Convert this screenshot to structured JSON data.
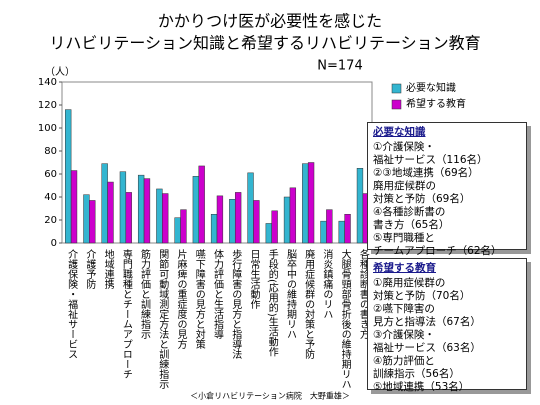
{
  "chart_data": {
    "type": "bar",
    "title": [
      "かかりつけ医が必要性を感じた",
      "リハビリテーション知識と希望するリハビリテーション教育"
    ],
    "subtitle": "N=174",
    "y_label": "（人）",
    "note": "＜小倉リハビリテーション病院　大野重雄＞",
    "categories": [
      "介護保険・福祉サービス",
      "介護予防",
      "地域連携",
      "専門職種とチームアプローチ",
      "筋力評価と訓練指示",
      "関節可動域測定方法と訓練指示",
      "片麻痺の重症度の見方",
      "嚥下障害の見方と対策",
      "体力評価と生活指導",
      "歩行障害の見方と指導法",
      "日常生活動作",
      "手段的(応用的)生活動作",
      "脳卒中の維持期リハ",
      "廃用症候群の対策と予防",
      "消炎鎮痛のリハ",
      "大腿骨頸部骨折後の維持期リハ",
      "各種診断書の書き方"
    ],
    "series": [
      {
        "name": "必要な知識",
        "color": "#33b5d0",
        "values": [
          116,
          42,
          69,
          62,
          59,
          47,
          22,
          58,
          25,
          38,
          61,
          17,
          40,
          69,
          19,
          19,
          65
        ]
      },
      {
        "name": "希望する教育",
        "color": "#cc00cc",
        "values": [
          63,
          37,
          53,
          44,
          56,
          43,
          29,
          67,
          41,
          44,
          37,
          28,
          48,
          70,
          29,
          25,
          43
        ]
      }
    ],
    "ylim": [
      0,
      140
    ],
    "yticks": [
      0,
      20,
      40,
      60,
      80,
      100,
      120,
      140
    ],
    "grid": false
  },
  "text_boxes": [
    {
      "heading": "必要な知識",
      "lines": [
        "①介護保険・",
        "福祉サービス（116名）",
        "②③地域連携（69名）",
        "廃用症候群の",
        "対策と予防（69名）",
        "④各種診断書の",
        "書き方（65名）",
        "⑤専門職種と",
        "チームアプローチ（62名）"
      ]
    },
    {
      "heading": "希望する教育",
      "lines": [
        "①廃用症候群の",
        "対策と予防（70名）",
        "②嚥下障害の",
        "見方と指導法（67名）",
        "③介護保険・",
        "福祉サービス（63名）",
        "④筋力評価と",
        "訓練指示（56名）",
        "⑤地域連携（53名）"
      ]
    }
  ]
}
